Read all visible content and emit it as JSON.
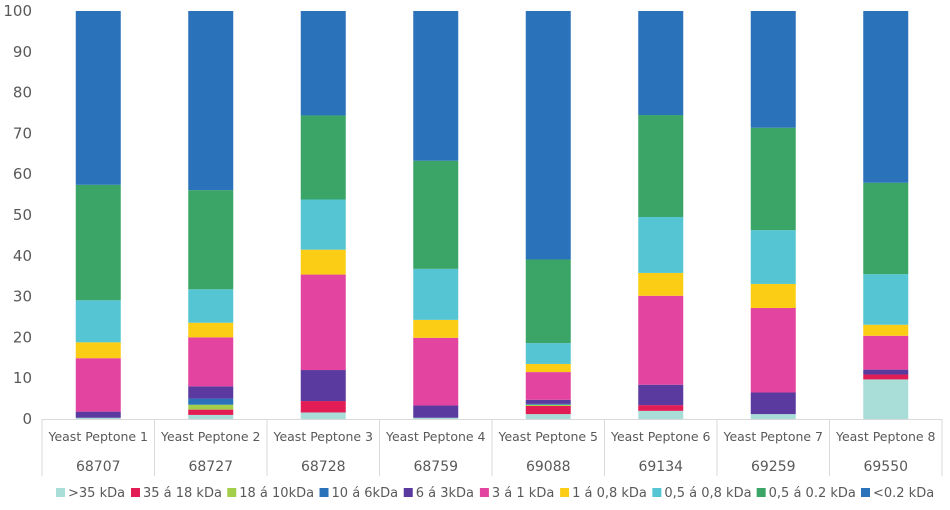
{
  "chart_data": {
    "type": "bar",
    "stacked": true,
    "title": "",
    "xlabel": "",
    "ylabel": "",
    "ylim": [
      0,
      100
    ],
    "yticks": [
      0,
      10,
      20,
      30,
      40,
      50,
      60,
      70,
      80,
      90,
      100
    ],
    "grid": false,
    "legend_position": "bottom",
    "categories": [
      "Yeast Peptone 1",
      "Yeast Peptone 2",
      "Yeast Peptone 3",
      "Yeast Peptone 4",
      "Yeast Peptone 5",
      "Yeast Peptone 6",
      "Yeast Peptone 7",
      "Yeast Peptone 8"
    ],
    "category_codes": [
      "68707",
      "68727",
      "68728",
      "68759",
      "69088",
      "69134",
      "69259",
      "69550"
    ],
    "series": [
      {
        "name": ">35 kDa",
        "color": "#a8ddd8",
        "values": [
          0.3,
          1.0,
          1.6,
          0.3,
          1.2,
          2.0,
          1.2,
          9.7
        ]
      },
      {
        "name": "35 á 18 kDa",
        "color": "#e21d55",
        "values": [
          0.0,
          1.3,
          2.8,
          0.0,
          2.0,
          1.4,
          0.0,
          1.2
        ]
      },
      {
        "name": "18 á 10kDa",
        "color": "#a4cf4a",
        "values": [
          0.0,
          1.2,
          0.0,
          0.0,
          0.3,
          0.0,
          0.0,
          0.0
        ]
      },
      {
        "name": "10 á 6kDa",
        "color": "#2a72ba",
        "values": [
          0.0,
          1.5,
          0.0,
          0.0,
          0.2,
          0.0,
          0.0,
          0.0
        ]
      },
      {
        "name": "6 á 3kDa",
        "color": "#5b3aa0",
        "values": [
          1.5,
          3.0,
          7.6,
          3.0,
          1.0,
          5.0,
          5.3,
          1.2
        ]
      },
      {
        "name": "3 á 1 kDa",
        "color": "#e2449f",
        "values": [
          13.1,
          12.0,
          23.4,
          16.6,
          6.8,
          21.8,
          20.7,
          8.3
        ]
      },
      {
        "name": "1 á 0,8 kDa",
        "color": "#fbcd14",
        "values": [
          3.9,
          3.6,
          6.1,
          4.4,
          2.0,
          5.6,
          5.9,
          2.7
        ]
      },
      {
        "name": "0,5 á 0,8 kDa",
        "color": "#55c5d4",
        "values": [
          10.3,
          8.2,
          12.3,
          12.5,
          5.1,
          13.7,
          13.2,
          12.4
        ]
      },
      {
        "name": "0,5 á 0.2 kDa",
        "color": "#3ba567",
        "values": [
          28.3,
          24.3,
          20.6,
          26.5,
          20.5,
          25.0,
          25.1,
          22.4
        ]
      },
      {
        "name": "<0.2 kDa",
        "color": "#2a72ba",
        "values": [
          42.6,
          43.9,
          25.6,
          36.7,
          60.9,
          25.5,
          28.6,
          42.1
        ]
      }
    ]
  }
}
